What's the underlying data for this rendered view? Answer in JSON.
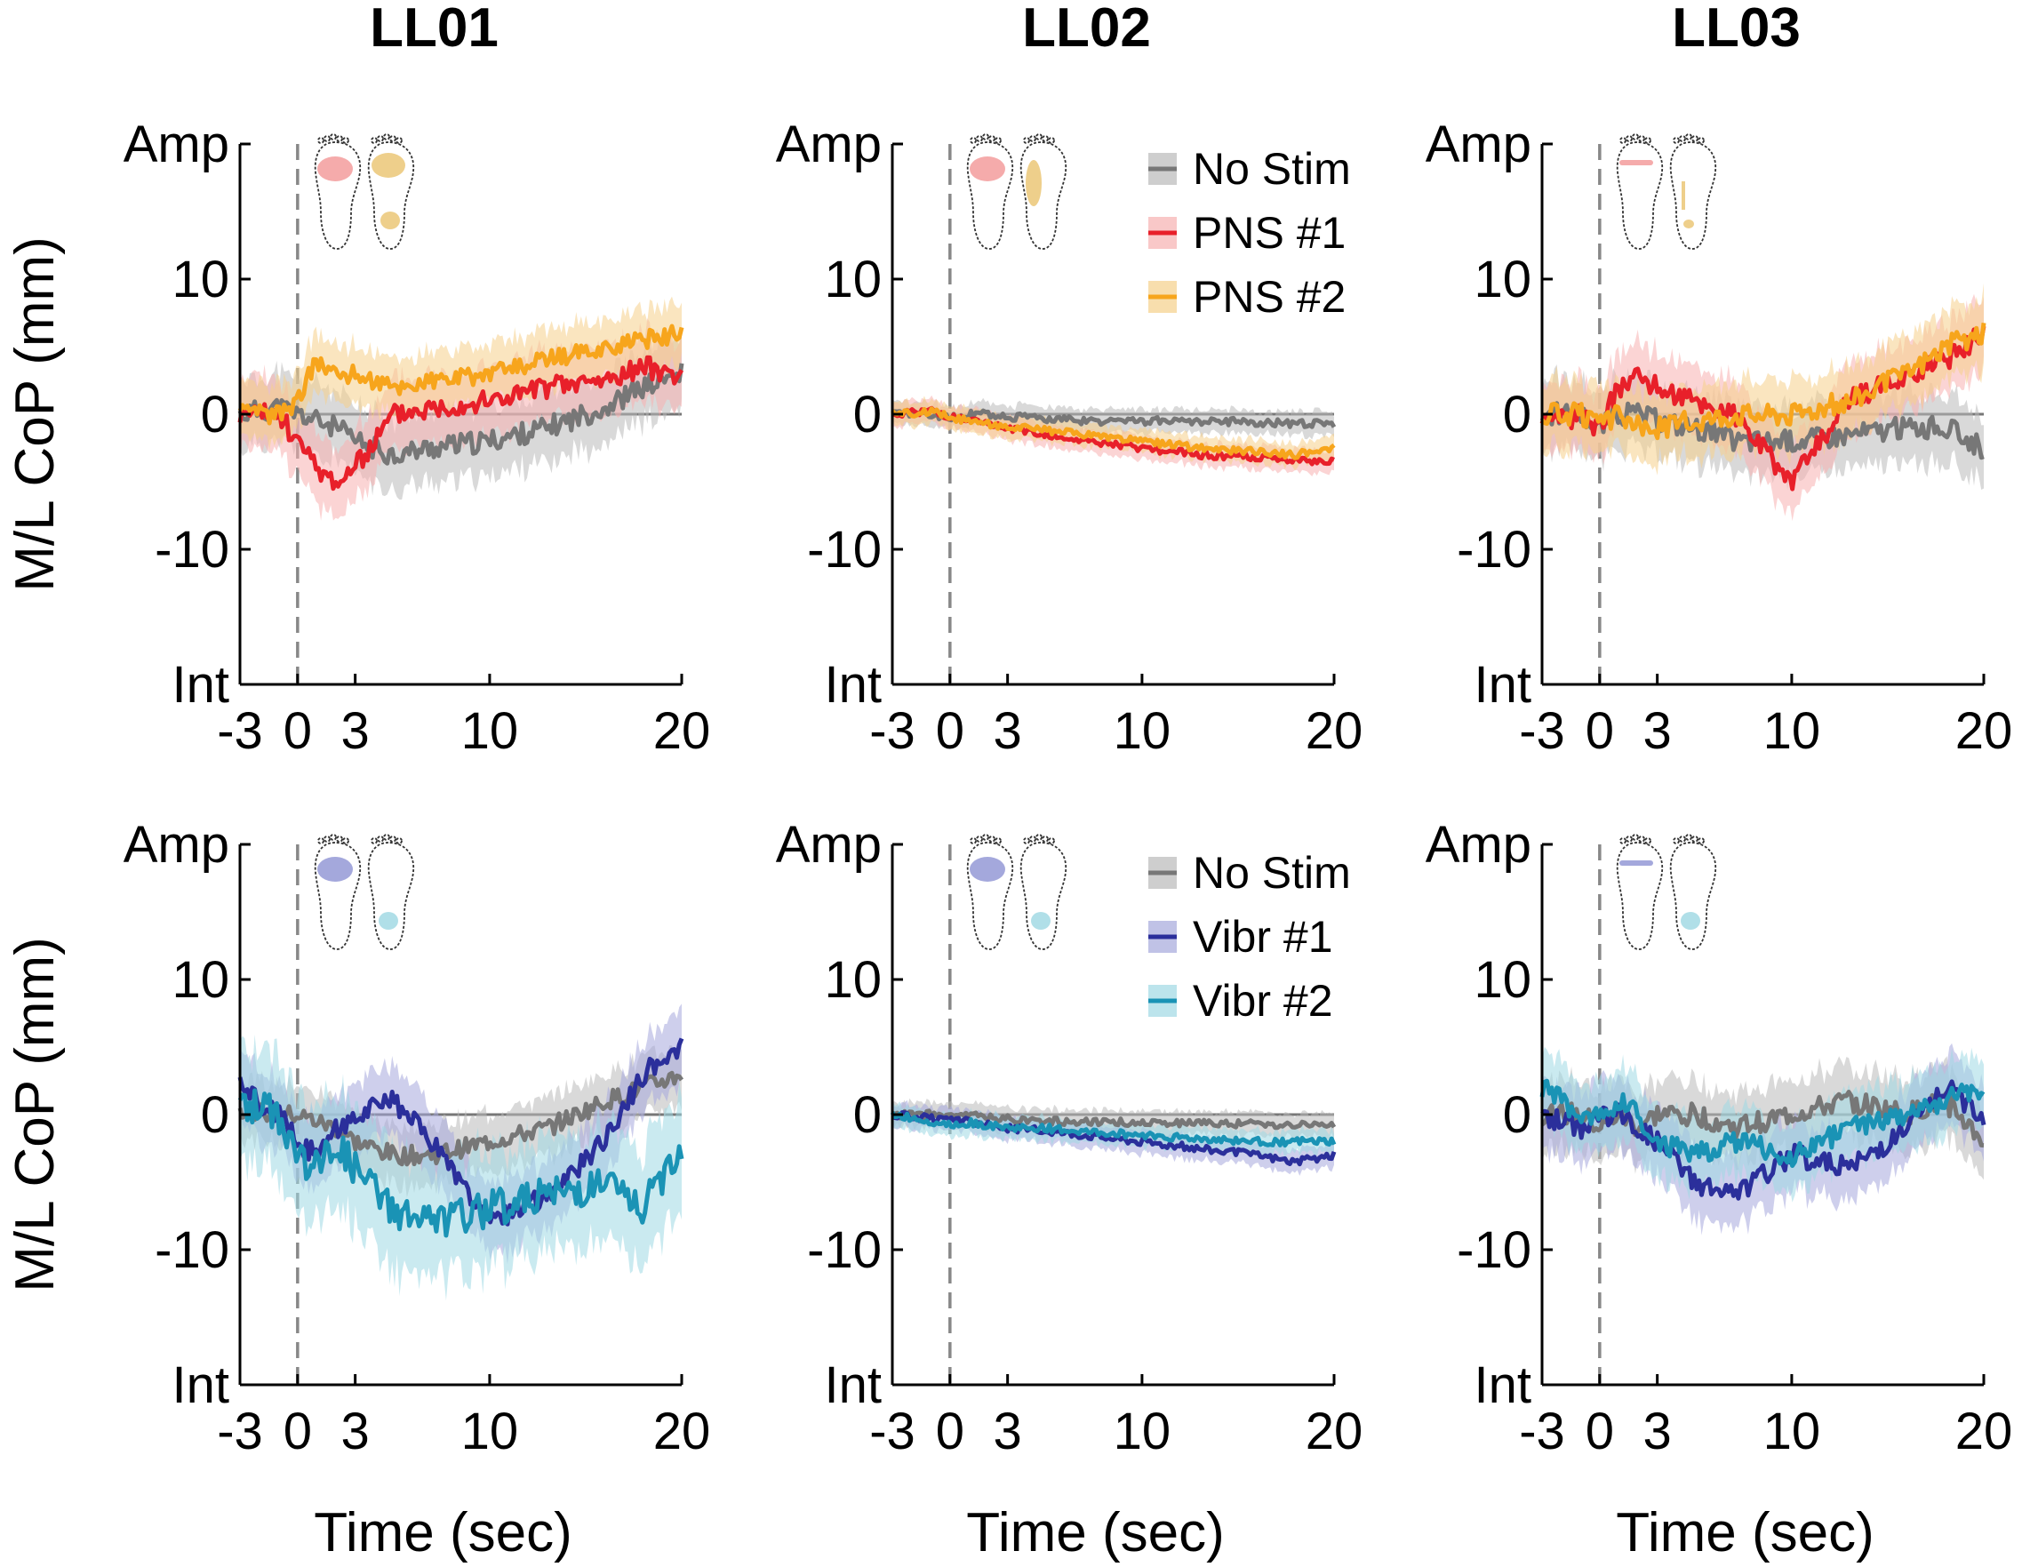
{
  "figure": {
    "column_titles": [
      "LL01",
      "LL02",
      "LL03"
    ],
    "y_axis_label": "M/L CoP (mm)",
    "x_axis_label": "Time (sec)",
    "y_tick_labels": [
      "Amp",
      "10",
      "0",
      "-10",
      "Int"
    ],
    "x_tick_labels": [
      "-3",
      "0",
      "3",
      "10",
      "20"
    ],
    "legends": {
      "pns": [
        {
          "label": "No Stim",
          "color": "#777777"
        },
        {
          "label": "PNS #1",
          "color": "#e8202a"
        },
        {
          "label": "PNS #2",
          "color": "#f7a51c"
        }
      ],
      "vibr": [
        {
          "label": "No Stim",
          "color": "#777777"
        },
        {
          "label": "Vibr #1",
          "color": "#2b2f9b"
        },
        {
          "label": "Vibr #2",
          "color": "#1a93b5"
        }
      ]
    },
    "foot_colors": {
      "pns1": "#f4a2a2",
      "pns2": "#ecca7e",
      "vibr1": "#9a9ed8",
      "vibr2": "#a7dce6"
    }
  },
  "chart_data": [
    {
      "type": "line",
      "panel": "LL01-PNS",
      "title": "LL01",
      "xlabel": "",
      "ylabel": "M/L CoP (mm)",
      "xlim": [
        -3,
        20
      ],
      "ylim": [
        -20,
        20
      ],
      "stim_onset": 0,
      "x": [
        -3,
        -1,
        0,
        1,
        2,
        3,
        5,
        7,
        10,
        13,
        16,
        18,
        20
      ],
      "series": [
        {
          "name": "No Stim",
          "values": [
            0,
            0.5,
            0,
            -0.5,
            -1,
            -2,
            -3,
            -2.5,
            -2,
            -1,
            0.5,
            2,
            3
          ],
          "band": 3
        },
        {
          "name": "PNS #1",
          "values": [
            0,
            0,
            -2,
            -4,
            -5,
            -4,
            0,
            0.5,
            1,
            2,
            2.5,
            3.5,
            3
          ],
          "band": 3
        },
        {
          "name": "PNS #2",
          "values": [
            0,
            0,
            1,
            4,
            3,
            3,
            2,
            2.5,
            3,
            4,
            5,
            5.5,
            6
          ],
          "band": 2.5
        }
      ]
    },
    {
      "type": "line",
      "panel": "LL02-PNS",
      "title": "LL02",
      "xlabel": "",
      "ylabel": "",
      "xlim": [
        -3,
        20
      ],
      "ylim": [
        -20,
        20
      ],
      "stim_onset": 0,
      "x": [
        -3,
        -1,
        0,
        1,
        2,
        3,
        5,
        7,
        10,
        13,
        16,
        18,
        20
      ],
      "series": [
        {
          "name": "No Stim",
          "values": [
            0,
            0,
            -0.3,
            0,
            0,
            -0.2,
            -0.3,
            -0.5,
            -0.5,
            -0.5,
            -0.6,
            -0.7,
            -0.7
          ],
          "band": 1
        },
        {
          "name": "PNS #1",
          "values": [
            0,
            0.3,
            -0.2,
            -0.5,
            -0.8,
            -1,
            -1.5,
            -2,
            -2.5,
            -3,
            -3.2,
            -3.5,
            -3.5
          ],
          "band": 1
        },
        {
          "name": "PNS #2",
          "values": [
            0,
            0.2,
            -0.2,
            -0.5,
            -0.7,
            -0.9,
            -1.2,
            -1.5,
            -2,
            -2.5,
            -2.8,
            -3,
            -2.5
          ],
          "band": 1
        }
      ]
    },
    {
      "type": "line",
      "panel": "LL03-PNS",
      "title": "LL03",
      "xlabel": "",
      "ylabel": "",
      "xlim": [
        -3,
        20
      ],
      "ylim": [
        -20,
        20
      ],
      "stim_onset": 0,
      "x": [
        -3,
        -1,
        0,
        1,
        2,
        3,
        5,
        7,
        10,
        13,
        16,
        18,
        20
      ],
      "series": [
        {
          "name": "No Stim",
          "values": [
            0,
            0,
            -1,
            0,
            0,
            -0.5,
            -1,
            -2,
            -2,
            -1.5,
            -1,
            -1,
            -2.5
          ],
          "band": 3
        },
        {
          "name": "PNS #1",
          "values": [
            -1,
            0,
            -1,
            2,
            3,
            2,
            1,
            0,
            -5,
            1,
            3,
            4,
            6
          ],
          "band": 3
        },
        {
          "name": "PNS #2",
          "values": [
            0,
            0,
            -1,
            0,
            -1,
            -1,
            -0.5,
            0,
            0,
            1,
            3,
            5,
            6
          ],
          "band": 3
        }
      ]
    },
    {
      "type": "line",
      "panel": "LL01-Vibr",
      "title": "",
      "xlabel": "Time (sec)",
      "ylabel": "M/L CoP (mm)",
      "xlim": [
        -3,
        20
      ],
      "ylim": [
        -20,
        20
      ],
      "stim_onset": 0,
      "x": [
        -3,
        -1,
        0,
        1,
        2,
        3,
        5,
        7,
        10,
        13,
        16,
        18,
        20
      ],
      "series": [
        {
          "name": "No Stim",
          "values": [
            0.5,
            0,
            0,
            -0.5,
            -1,
            -2,
            -3,
            -3,
            -2,
            -1,
            1,
            2,
            3
          ],
          "band": 2.5
        },
        {
          "name": "Vibr #1",
          "values": [
            2,
            0,
            -2,
            -3,
            -1,
            0,
            1,
            -2,
            -8,
            -6,
            -2,
            3,
            5
          ],
          "band": 3
        },
        {
          "name": "Vibr #2",
          "values": [
            1,
            0,
            -3,
            -4,
            -2,
            -4,
            -7,
            -8,
            -7,
            -6,
            -5,
            -7,
            -2
          ],
          "band": 5
        }
      ]
    },
    {
      "type": "line",
      "panel": "LL02-Vibr",
      "title": "",
      "xlabel": "Time (sec)",
      "ylabel": "",
      "xlim": [
        -3,
        20
      ],
      "ylim": [
        -20,
        20
      ],
      "stim_onset": 0,
      "x": [
        -3,
        -1,
        0,
        1,
        2,
        3,
        5,
        7,
        10,
        13,
        16,
        18,
        20
      ],
      "series": [
        {
          "name": "No Stim",
          "values": [
            0,
            0,
            -0.2,
            0,
            -0.2,
            -0.3,
            -0.5,
            -0.5,
            -0.6,
            -0.6,
            -0.7,
            -0.8,
            -0.8
          ],
          "band": 1
        },
        {
          "name": "Vibr #1",
          "values": [
            0,
            -0.3,
            -0.5,
            -0.5,
            -0.8,
            -1,
            -1.2,
            -1.5,
            -2,
            -2.5,
            -3,
            -3.5,
            -3
          ],
          "band": 1
        },
        {
          "name": "Vibr #2",
          "values": [
            0,
            -0.5,
            -0.7,
            -0.6,
            -0.8,
            -1,
            -1,
            -1.3,
            -1.5,
            -1.8,
            -2,
            -2,
            -2
          ],
          "band": 1
        }
      ]
    },
    {
      "type": "line",
      "panel": "LL03-Vibr",
      "title": "",
      "xlabel": "Time (sec)",
      "ylabel": "",
      "xlim": [
        -3,
        20
      ],
      "ylim": [
        -20,
        20
      ],
      "stim_onset": 0,
      "x": [
        -3,
        -1,
        0,
        1,
        2,
        3,
        5,
        7,
        10,
        13,
        16,
        18,
        20
      ],
      "series": [
        {
          "name": "No Stim",
          "values": [
            0,
            0,
            -1,
            0,
            -1,
            0,
            0,
            -1,
            0,
            1,
            0,
            1,
            -2
          ],
          "band": 3
        },
        {
          "name": "Vibr #1",
          "values": [
            0,
            -1,
            0,
            0,
            -1,
            -2,
            -5,
            -6,
            -3,
            -4,
            -1,
            2,
            0
          ],
          "band": 3
        },
        {
          "name": "Vibr #2",
          "values": [
            2,
            0,
            0,
            1,
            0,
            -2,
            -3,
            -2,
            -3,
            -1,
            0,
            1,
            2
          ],
          "band": 3
        }
      ]
    }
  ]
}
